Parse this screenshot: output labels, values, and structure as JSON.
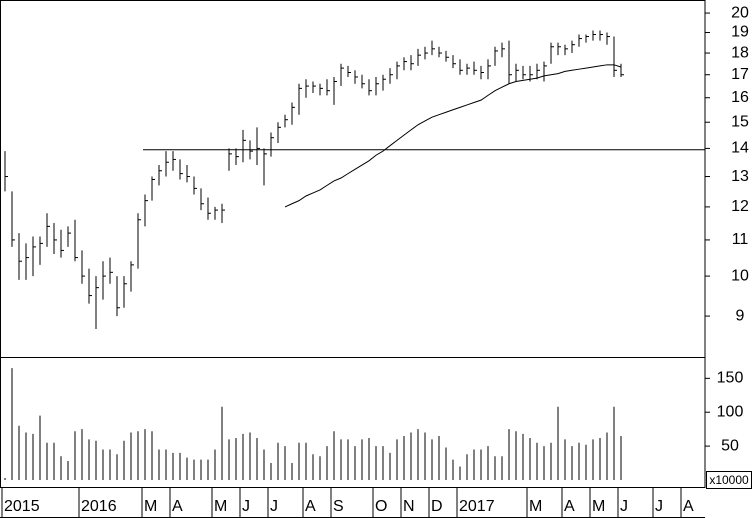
{
  "chart_data": [
    {
      "type": "ohlc",
      "log": true,
      "color": "#000000",
      "categories": [
        "2015",
        null,
        null,
        null,
        null,
        null,
        null,
        null,
        null,
        null,
        null,
        "2016",
        null,
        null,
        null,
        null,
        null,
        null,
        null,
        null,
        "M",
        null,
        null,
        null,
        "A",
        null,
        null,
        null,
        null,
        null,
        "M",
        null,
        null,
        null,
        "J",
        null,
        null,
        null,
        "J",
        null,
        null,
        null,
        null,
        "A",
        null,
        null,
        null,
        "S",
        null,
        null,
        null,
        null,
        null,
        "O",
        null,
        null,
        null,
        "N",
        null,
        null,
        null,
        "D",
        null,
        null,
        null,
        "2017",
        null,
        null,
        null,
        null,
        null,
        null,
        null,
        null,
        null,
        "M",
        null,
        null,
        null,
        null,
        "A",
        null,
        null,
        null,
        "M",
        null,
        null,
        null,
        "J",
        null,
        null,
        null,
        null,
        "J",
        null,
        null,
        null,
        "A",
        null,
        null,
        null
      ],
      "high": [
        13.9,
        12.5,
        11.2,
        10.9,
        11.1,
        11.1,
        11.8,
        11.5,
        11.3,
        11.4,
        11.6,
        10.7,
        10.2,
        10.0,
        10.4,
        10.5,
        10.0,
        10.0,
        10.4,
        11.8,
        12.4,
        13.0,
        13.4,
        13.9,
        13.9,
        13.6,
        13.4,
        13.0,
        12.6,
        12.3,
        12.0,
        12.1,
        14.0,
        14.0,
        14.7,
        14.3,
        14.8,
        14.0,
        14.6,
        15.0,
        15.3,
        15.8,
        16.6,
        16.8,
        16.7,
        16.6,
        16.8,
        16.9,
        17.5,
        17.4,
        17.2,
        17.0,
        16.8,
        16.9,
        17.0,
        17.3,
        17.6,
        17.8,
        17.9,
        18.2,
        18.3,
        18.6,
        18.3,
        18.1,
        17.9,
        17.7,
        17.5,
        17.6,
        17.4,
        17.7,
        18.3,
        18.5,
        18.6,
        17.5,
        17.4,
        17.4,
        17.5,
        17.6,
        18.5,
        18.5,
        18.4,
        18.6,
        18.9,
        18.9,
        19.1,
        19.1,
        19.0,
        18.8,
        17.5,
        null,
        null,
        null,
        null,
        null,
        null,
        null,
        null,
        null,
        null,
        null,
        null
      ],
      "low": [
        12.5,
        10.8,
        9.9,
        9.9,
        10.0,
        10.3,
        10.8,
        10.6,
        10.5,
        10.8,
        10.4,
        9.8,
        9.3,
        8.7,
        9.4,
        9.8,
        9.0,
        9.2,
        9.6,
        10.2,
        11.4,
        12.2,
        12.7,
        13.0,
        13.2,
        12.9,
        12.8,
        12.4,
        11.9,
        11.6,
        11.6,
        11.5,
        13.2,
        13.4,
        13.5,
        13.6,
        13.4,
        12.7,
        13.7,
        14.2,
        14.8,
        14.9,
        15.3,
        16.0,
        16.2,
        16.1,
        16.1,
        15.7,
        16.5,
        16.9,
        16.6,
        16.4,
        16.1,
        16.1,
        16.3,
        16.6,
        16.8,
        17.2,
        17.2,
        17.4,
        17.7,
        17.9,
        17.8,
        17.6,
        17.3,
        17.0,
        17.0,
        17.0,
        16.8,
        16.8,
        17.4,
        17.8,
        16.6,
        16.7,
        16.8,
        16.7,
        16.8,
        16.7,
        17.5,
        17.9,
        17.9,
        18.0,
        18.3,
        18.5,
        18.6,
        18.6,
        18.4,
        16.9,
        16.9,
        null,
        null,
        null,
        null,
        null,
        null,
        null,
        null,
        null,
        null,
        null,
        null
      ],
      "close": [
        13.0,
        11.0,
        10.4,
        10.5,
        10.8,
        10.9,
        11.4,
        11.0,
        10.7,
        11.2,
        10.5,
        10.0,
        9.5,
        9.7,
        10.0,
        10.1,
        9.2,
        9.8,
        10.3,
        11.6,
        12.2,
        12.9,
        13.2,
        13.5,
        13.6,
        13.1,
        13.0,
        12.6,
        12.1,
        11.8,
        11.9,
        11.9,
        13.8,
        13.7,
        14.3,
        13.9,
        14.0,
        13.8,
        14.4,
        14.8,
        15.1,
        15.6,
        16.4,
        16.5,
        16.5,
        16.4,
        16.3,
        16.7,
        17.3,
        17.1,
        16.9,
        16.6,
        16.3,
        16.6,
        16.8,
        17.0,
        17.4,
        17.6,
        17.5,
        17.9,
        18.0,
        18.2,
        18.0,
        17.8,
        17.5,
        17.2,
        17.3,
        17.2,
        17.1,
        17.4,
        18.1,
        18.2,
        17.0,
        17.2,
        17.0,
        17.0,
        17.2,
        17.4,
        18.3,
        18.3,
        18.2,
        18.4,
        18.7,
        18.8,
        18.9,
        18.9,
        18.8,
        17.2,
        17.0,
        null,
        null,
        null,
        null,
        null,
        null,
        null,
        null,
        null,
        null,
        null,
        null
      ],
      "ma": [
        null,
        null,
        null,
        null,
        null,
        null,
        null,
        null,
        null,
        null,
        null,
        null,
        null,
        null,
        null,
        null,
        null,
        null,
        null,
        null,
        null,
        null,
        null,
        null,
        null,
        null,
        null,
        null,
        null,
        null,
        null,
        null,
        null,
        null,
        null,
        null,
        null,
        null,
        null,
        null,
        12.0,
        12.1,
        12.2,
        12.35,
        12.45,
        12.55,
        12.7,
        12.85,
        12.95,
        13.1,
        13.25,
        13.4,
        13.55,
        13.75,
        13.9,
        14.1,
        14.3,
        14.5,
        14.7,
        14.9,
        15.05,
        15.2,
        15.3,
        15.4,
        15.5,
        15.6,
        15.7,
        15.8,
        15.9,
        16.1,
        16.3,
        16.45,
        16.6,
        16.7,
        16.75,
        16.8,
        16.85,
        16.95,
        17.0,
        17.05,
        17.15,
        17.2,
        17.25,
        17.3,
        17.35,
        17.4,
        17.45,
        17.45,
        17.35,
        null,
        null,
        null,
        null,
        null,
        null,
        null,
        null,
        null,
        null,
        null,
        null
      ],
      "hline": 13.95,
      "ylim": [
        8.08,
        20.7
      ],
      "yticks": [
        9,
        10,
        11,
        12,
        13,
        14,
        15,
        16,
        17,
        18,
        19,
        20
      ]
    },
    {
      "type": "bar",
      "color": "#000000",
      "axis_label": "x10000",
      "values": [
        3,
        165,
        80,
        70,
        68,
        95,
        55,
        55,
        35,
        28,
        72,
        75,
        60,
        58,
        45,
        45,
        38,
        58,
        70,
        72,
        75,
        72,
        45,
        45,
        40,
        40,
        33,
        30,
        30,
        30,
        45,
        108,
        60,
        62,
        68,
        70,
        62,
        45,
        25,
        55,
        50,
        25,
        55,
        55,
        38,
        35,
        50,
        72,
        60,
        60,
        50,
        60,
        62,
        50,
        50,
        40,
        60,
        65,
        70,
        75,
        70,
        60,
        65,
        48,
        30,
        20,
        38,
        45,
        45,
        50,
        35,
        35,
        75,
        72,
        68,
        62,
        55,
        50,
        55,
        108,
        60,
        50,
        55,
        52,
        60,
        62,
        70,
        108,
        65,
        null,
        null,
        null,
        null,
        null,
        null,
        null,
        null,
        null,
        null,
        null,
        null
      ],
      "ylim": [
        0,
        180
      ],
      "yticks": [
        50,
        100,
        150
      ]
    }
  ]
}
